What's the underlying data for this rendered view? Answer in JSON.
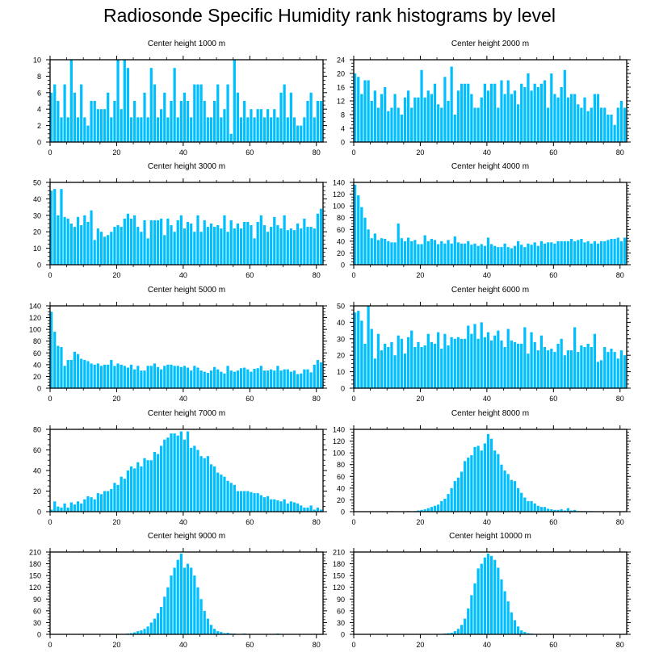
{
  "title": "Radiosonde Specific Humidity rank histograms by level",
  "bar_color": "#00BFFF",
  "chart_data": [
    {
      "type": "bar",
      "title": "Center height 1000 m",
      "xlim": [
        0,
        82
      ],
      "xticks": [
        0,
        20,
        40,
        60,
        80
      ],
      "ylim": [
        0,
        10
      ],
      "yticks": [
        0,
        2,
        4,
        6,
        8,
        10
      ],
      "values": [
        6,
        7,
        5,
        3,
        7,
        3,
        10,
        6,
        3,
        7,
        3,
        2,
        5,
        5,
        4,
        4,
        4,
        6,
        3,
        5,
        10,
        4,
        10,
        9,
        3,
        5,
        3,
        3,
        6,
        3,
        9,
        7,
        3,
        4,
        6,
        3,
        5,
        9,
        3,
        5,
        6,
        5,
        3,
        7,
        7,
        7,
        5,
        3,
        3,
        5,
        7,
        3,
        4,
        7,
        1,
        10,
        6,
        3,
        5,
        3,
        4,
        3,
        4,
        4,
        3,
        4,
        3,
        4,
        3,
        6,
        7,
        3,
        6,
        3,
        2,
        2,
        3,
        5,
        6,
        3,
        5,
        5
      ]
    },
    {
      "type": "bar",
      "title": "Center height 2000 m",
      "xlim": [
        0,
        82
      ],
      "xticks": [
        0,
        20,
        40,
        60,
        80
      ],
      "ylim": [
        0,
        24
      ],
      "yticks": [
        0,
        4,
        8,
        12,
        16,
        20,
        24
      ],
      "values": [
        20,
        19,
        14,
        18,
        18,
        12,
        15,
        10,
        14,
        16,
        9,
        10,
        14,
        10,
        8,
        13,
        15,
        10,
        13,
        13,
        21,
        13,
        15,
        14,
        17,
        11,
        10,
        19,
        12,
        22,
        8,
        15,
        17,
        17,
        17,
        14,
        10,
        10,
        13,
        17,
        15,
        17,
        17,
        10,
        18,
        14,
        18,
        14,
        15,
        11,
        17,
        16,
        20,
        15,
        17,
        16,
        17,
        18,
        10,
        20,
        14,
        13,
        16,
        21,
        13,
        14,
        14,
        11,
        10,
        13,
        9,
        10,
        14,
        14,
        10,
        10,
        8,
        8,
        5,
        10,
        12,
        10
      ]
    },
    {
      "type": "bar",
      "title": "Center height 3000 m",
      "xlim": [
        0,
        82
      ],
      "xticks": [
        0,
        20,
        40,
        60,
        80
      ],
      "ylim": [
        0,
        50
      ],
      "yticks": [
        0,
        10,
        20,
        30,
        40,
        50
      ],
      "values": [
        45,
        46,
        30,
        46,
        29,
        28,
        25,
        23,
        29,
        24,
        30,
        26,
        33,
        15,
        22,
        20,
        17,
        18,
        20,
        23,
        24,
        23,
        28,
        31,
        28,
        30,
        23,
        20,
        27,
        16,
        27,
        27,
        27,
        28,
        18,
        28,
        24,
        20,
        27,
        30,
        22,
        26,
        25,
        20,
        30,
        20,
        27,
        23,
        25,
        23,
        24,
        22,
        30,
        20,
        27,
        22,
        25,
        22,
        26,
        26,
        24,
        16,
        26,
        30,
        24,
        20,
        23,
        29,
        24,
        22,
        30,
        21,
        22,
        21,
        25,
        22,
        28,
        23,
        23,
        22,
        31,
        34
      ]
    },
    {
      "type": "bar",
      "title": "Center height 4000 m",
      "xlim": [
        0,
        82
      ],
      "xticks": [
        0,
        20,
        40,
        60,
        80
      ],
      "ylim": [
        0,
        140
      ],
      "yticks": [
        0,
        20,
        40,
        60,
        80,
        100,
        120,
        140
      ],
      "values": [
        136,
        118,
        98,
        80,
        60,
        45,
        53,
        42,
        45,
        44,
        40,
        38,
        38,
        70,
        45,
        40,
        46,
        40,
        42,
        35,
        35,
        50,
        40,
        44,
        42,
        35,
        40,
        36,
        42,
        36,
        48,
        38,
        36,
        36,
        40,
        34,
        36,
        32,
        35,
        32,
        46,
        35,
        32,
        30,
        30,
        36,
        30,
        28,
        32,
        40,
        34,
        30,
        36,
        34,
        38,
        32,
        40,
        36,
        38,
        38,
        36,
        40,
        40,
        40,
        40,
        44,
        40,
        42,
        44,
        38,
        40,
        36,
        40,
        36,
        40,
        40,
        42,
        44,
        44,
        46,
        40,
        46
      ]
    },
    {
      "type": "bar",
      "title": "Center height 5000 m",
      "xlim": [
        0,
        82
      ],
      "xticks": [
        0,
        20,
        40,
        60,
        80
      ],
      "ylim": [
        0,
        140
      ],
      "yticks": [
        0,
        20,
        40,
        60,
        80,
        100,
        120,
        140
      ],
      "values": [
        130,
        96,
        72,
        70,
        38,
        48,
        48,
        62,
        58,
        50,
        48,
        46,
        42,
        40,
        42,
        38,
        40,
        40,
        48,
        38,
        42,
        40,
        38,
        35,
        40,
        32,
        38,
        30,
        30,
        38,
        38,
        42,
        36,
        32,
        38,
        40,
        40,
        38,
        38,
        36,
        38,
        35,
        30,
        38,
        35,
        30,
        28,
        26,
        30,
        36,
        32,
        28,
        25,
        38,
        30,
        28,
        30,
        34,
        35,
        32,
        28,
        33,
        34,
        38,
        30,
        30,
        32,
        30,
        38,
        30,
        32,
        32,
        28,
        30,
        24,
        25,
        32,
        32,
        27,
        40,
        48,
        44
      ]
    },
    {
      "type": "bar",
      "title": "Center height 6000 m",
      "xlim": [
        0,
        82
      ],
      "xticks": [
        0,
        20,
        40,
        60,
        80
      ],
      "ylim": [
        0,
        50
      ],
      "yticks": [
        0,
        10,
        20,
        30,
        40,
        50
      ],
      "values": [
        46,
        47,
        41,
        27,
        50,
        36,
        18,
        33,
        23,
        27,
        25,
        28,
        20,
        32,
        30,
        21,
        31,
        35,
        25,
        28,
        25,
        26,
        33,
        28,
        27,
        34,
        24,
        33,
        26,
        31,
        30,
        31,
        30,
        30,
        38,
        33,
        39,
        30,
        40,
        31,
        34,
        29,
        32,
        35,
        29,
        25,
        36,
        29,
        28,
        27,
        27,
        37,
        21,
        34,
        28,
        23,
        32,
        25,
        23,
        24,
        22,
        27,
        30,
        20,
        23,
        23,
        37,
        22,
        26,
        25,
        27,
        25,
        33,
        16,
        17,
        25,
        22,
        24,
        22,
        18,
        23,
        20
      ]
    },
    {
      "type": "bar",
      "title": "Center height 7000 m",
      "xlim": [
        0,
        82
      ],
      "xticks": [
        0,
        20,
        40,
        60,
        80
      ],
      "ylim": [
        0,
        80
      ],
      "yticks": [
        0,
        20,
        40,
        60,
        80
      ],
      "values": [
        2,
        10,
        5,
        4,
        8,
        4,
        9,
        7,
        10,
        8,
        12,
        15,
        14,
        12,
        18,
        17,
        20,
        20,
        22,
        28,
        26,
        34,
        32,
        40,
        44,
        42,
        48,
        44,
        52,
        50,
        50,
        58,
        56,
        64,
        70,
        72,
        76,
        76,
        74,
        78,
        70,
        78,
        62,
        64,
        60,
        54,
        52,
        54,
        46,
        44,
        38,
        36,
        34,
        30,
        28,
        26,
        20,
        20,
        20,
        20,
        19,
        18,
        18,
        16,
        14,
        15,
        12,
        12,
        11,
        10,
        12,
        8,
        10,
        9,
        8,
        6,
        4,
        4,
        6,
        2,
        4,
        2
      ]
    },
    {
      "type": "bar",
      "title": "Center height 8000 m",
      "xlim": [
        0,
        82
      ],
      "xticks": [
        0,
        20,
        40,
        60,
        80
      ],
      "ylim": [
        0,
        140
      ],
      "yticks": [
        0,
        20,
        40,
        60,
        80,
        100,
        120,
        140
      ],
      "values": [
        0,
        0,
        0,
        0,
        0,
        0,
        0,
        0,
        0,
        0,
        0,
        1,
        0,
        0,
        0,
        0,
        1,
        0,
        1,
        2,
        3,
        4,
        6,
        8,
        10,
        12,
        18,
        22,
        30,
        40,
        52,
        58,
        68,
        86,
        92,
        96,
        110,
        112,
        104,
        116,
        132,
        124,
        104,
        98,
        80,
        70,
        64,
        54,
        52,
        40,
        32,
        24,
        18,
        18,
        14,
        10,
        8,
        8,
        5,
        4,
        3,
        3,
        4,
        2,
        6,
        2,
        3,
        1,
        1,
        1,
        0,
        1,
        0,
        0,
        0,
        0,
        0,
        0,
        0,
        0,
        0,
        0
      ]
    },
    {
      "type": "bar",
      "title": "Center height 9000 m",
      "xlim": [
        0,
        82
      ],
      "xticks": [
        0,
        20,
        40,
        60,
        80
      ],
      "ylim": [
        0,
        210
      ],
      "yticks": [
        0,
        30,
        60,
        90,
        120,
        150,
        180,
        210
      ],
      "values": [
        0,
        0,
        0,
        0,
        0,
        0,
        0,
        0,
        0,
        0,
        0,
        0,
        0,
        0,
        0,
        0,
        0,
        0,
        0,
        0,
        0,
        0,
        1,
        2,
        3,
        5,
        8,
        10,
        14,
        20,
        30,
        40,
        54,
        70,
        96,
        120,
        150,
        170,
        190,
        206,
        170,
        180,
        170,
        150,
        120,
        90,
        60,
        40,
        24,
        14,
        8,
        6,
        3,
        4,
        2,
        2,
        1,
        1,
        2,
        1,
        1,
        0,
        0,
        0,
        0,
        0,
        0,
        0,
        2,
        1,
        0,
        0,
        0,
        0,
        0,
        0,
        0,
        0,
        0,
        0,
        0,
        0
      ]
    },
    {
      "type": "bar",
      "title": "Center height 10000 m",
      "xlim": [
        0,
        82
      ],
      "xticks": [
        0,
        20,
        40,
        60,
        80
      ],
      "ylim": [
        0,
        210
      ],
      "yticks": [
        0,
        30,
        60,
        90,
        120,
        150,
        180,
        210
      ],
      "values": [
        0,
        0,
        0,
        0,
        0,
        0,
        0,
        0,
        0,
        0,
        0,
        0,
        0,
        0,
        0,
        0,
        0,
        0,
        0,
        0,
        0,
        0,
        0,
        0,
        0,
        1,
        1,
        2,
        3,
        4,
        8,
        14,
        24,
        40,
        66,
        100,
        130,
        168,
        180,
        196,
        206,
        200,
        190,
        170,
        140,
        110,
        84,
        56,
        36,
        20,
        10,
        6,
        3,
        2,
        1,
        1,
        1,
        0,
        0,
        0,
        0,
        0,
        0,
        0,
        0,
        0,
        0,
        0,
        0,
        0,
        0,
        0,
        0,
        0,
        0,
        0,
        0,
        0,
        0,
        0,
        0,
        0
      ]
    }
  ]
}
